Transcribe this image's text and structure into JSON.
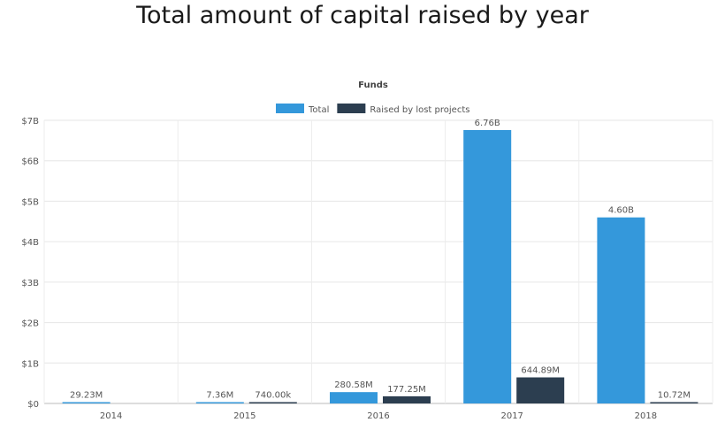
{
  "page": {
    "title": "Total amount of capital raised by year"
  },
  "chart_data": {
    "type": "bar",
    "title": "Funds",
    "legend_position": "top-center",
    "grid": true,
    "categories": [
      "2014",
      "2015",
      "2016",
      "2017",
      "2018"
    ],
    "y_ticks": [
      "$0",
      "$1B",
      "$2B",
      "$3B",
      "$4B",
      "$5B",
      "$6B",
      "$7B"
    ],
    "ylim": [
      0,
      7000000000
    ],
    "series": [
      {
        "name": "Total",
        "color": "#3498db",
        "values": [
          29230000,
          7360000,
          280580000,
          6760000000,
          4600000000
        ],
        "labels": [
          "29.23M",
          "7.36M",
          "280.58M",
          "6.76B",
          "4.60B"
        ]
      },
      {
        "name": "Raised by lost projects",
        "color": "#2c3e50",
        "values": [
          0,
          740000,
          177250000,
          644890000,
          10720000
        ],
        "labels": [
          "",
          "740.00k",
          "177.25M",
          "644.89M",
          "10.72M"
        ]
      }
    ]
  }
}
